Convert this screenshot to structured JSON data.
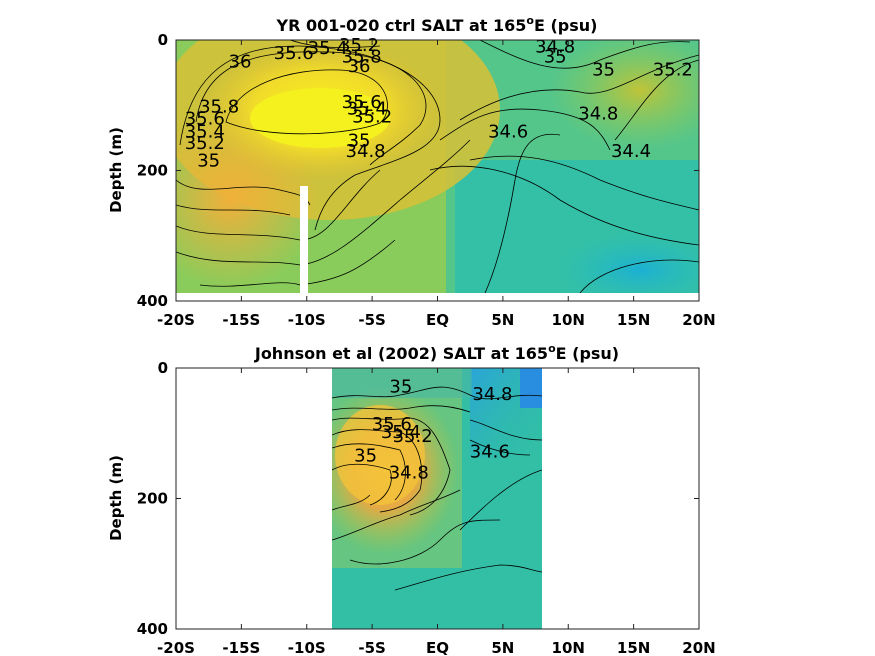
{
  "chart_data": [
    {
      "type": "heatmap",
      "title": "YR 001-020 ctrl SALT at 165",
      "title_sup": "o",
      "title_tail": "E (psu)",
      "ylabel": "Depth (m)",
      "xlim": [
        -20,
        20
      ],
      "ylim": [
        0,
        400
      ],
      "xticks": [
        -20,
        -15,
        -10,
        -5,
        0,
        5,
        10,
        15,
        20
      ],
      "xtick_labels": [
        "-20S",
        "-15S",
        "-10S",
        "-5S",
        "EQ",
        "5N",
        "10N",
        "15N",
        "20N"
      ],
      "yticks": [
        0,
        200,
        400
      ],
      "ytick_labels": [
        "0",
        "200",
        "400"
      ],
      "data_extent": {
        "x": [
          -20,
          20
        ],
        "depth": [
          0,
          385
        ]
      },
      "missing_column": {
        "x": [
          -10.4,
          -9.8
        ],
        "depth": [
          225,
          385
        ]
      },
      "contour_labels": [
        {
          "text": "35.2",
          "x": -6.0,
          "depth": 8
        },
        {
          "text": "35.4",
          "x": -8.4,
          "depth": 12
        },
        {
          "text": "35.6",
          "x": -11.0,
          "depth": 20
        },
        {
          "text": "35.8",
          "x": -5.8,
          "depth": 25
        },
        {
          "text": "36",
          "x": -15.1,
          "depth": 33
        },
        {
          "text": "36",
          "x": -6.0,
          "depth": 40
        },
        {
          "text": "34.8",
          "x": 9.0,
          "depth": 10
        },
        {
          "text": "35",
          "x": 9.0,
          "depth": 25
        },
        {
          "text": "35",
          "x": 12.7,
          "depth": 45
        },
        {
          "text": "35.2",
          "x": 18.0,
          "depth": 45
        },
        {
          "text": "35.6",
          "x": -5.8,
          "depth": 95
        },
        {
          "text": "35.4",
          "x": -5.4,
          "depth": 105
        },
        {
          "text": "35.2",
          "x": -5.0,
          "depth": 117
        },
        {
          "text": "35.8",
          "x": -16.7,
          "depth": 102
        },
        {
          "text": "35.6",
          "x": -17.8,
          "depth": 120
        },
        {
          "text": "35.4",
          "x": -17.8,
          "depth": 140
        },
        {
          "text": "35.2",
          "x": -17.8,
          "depth": 158
        },
        {
          "text": "35",
          "x": -6.0,
          "depth": 154
        },
        {
          "text": "34.8",
          "x": -5.5,
          "depth": 170
        },
        {
          "text": "34.6",
          "x": 5.4,
          "depth": 140
        },
        {
          "text": "34.8",
          "x": 12.3,
          "depth": 113
        },
        {
          "text": "34.4",
          "x": 14.8,
          "depth": 170
        },
        {
          "text": "35",
          "x": -17.5,
          "depth": 185
        }
      ]
    },
    {
      "type": "heatmap",
      "title": "Johnson et al (2002) SALT at 165",
      "title_sup": "o",
      "title_tail": "E (psu)",
      "ylabel": "Depth (m)",
      "xlim": [
        -20,
        20
      ],
      "ylim": [
        0,
        400
      ],
      "xticks": [
        -20,
        -15,
        -10,
        -5,
        0,
        5,
        10,
        15,
        20
      ],
      "xtick_labels": [
        "-20S",
        "-15S",
        "-10S",
        "-5S",
        "EQ",
        "5N",
        "10N",
        "15N",
        "20N"
      ],
      "yticks": [
        0,
        200,
        400
      ],
      "ytick_labels": [
        "0",
        "200",
        "400"
      ],
      "data_extent": {
        "x": [
          -8,
          8
        ],
        "depth": [
          0,
          400
        ]
      },
      "contour_labels": [
        {
          "text": "35",
          "x": -2.8,
          "depth": 28
        },
        {
          "text": "34.8",
          "x": 4.2,
          "depth": 40
        },
        {
          "text": "35.6",
          "x": -3.5,
          "depth": 86
        },
        {
          "text": "35.4",
          "x": -2.8,
          "depth": 98
        },
        {
          "text": "35.2",
          "x": -1.9,
          "depth": 104
        },
        {
          "text": "34.6",
          "x": 4.0,
          "depth": 128
        },
        {
          "text": "35",
          "x": -5.5,
          "depth": 134
        },
        {
          "text": "34.8",
          "x": -2.2,
          "depth": 160
        }
      ]
    }
  ]
}
